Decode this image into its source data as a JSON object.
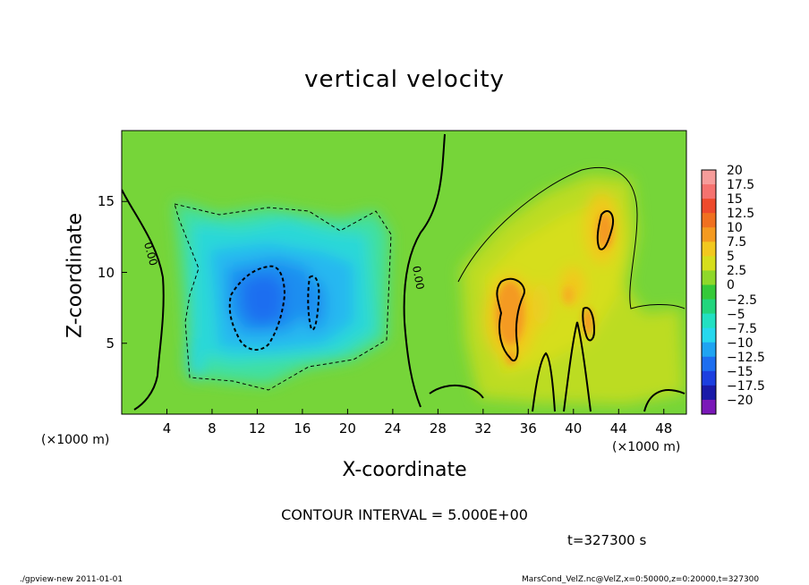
{
  "chart_data": {
    "type": "heatmap",
    "title": "vertical velocity",
    "xlabel": "X-coordinate",
    "ylabel": "Z-coordinate",
    "x_unit_label": "(×1000 m)",
    "xlim": [
      0,
      50
    ],
    "ylim": [
      0,
      20
    ],
    "xticks": [
      4,
      8,
      12,
      16,
      20,
      24,
      28,
      32,
      36,
      40,
      44,
      48
    ],
    "yticks": [
      5,
      10,
      15
    ],
    "colorbar": {
      "levels": [
        20,
        17.5,
        15,
        12.5,
        10,
        7.5,
        5,
        2.5,
        0,
        -2.5,
        -5,
        -7.5,
        -10,
        -12.5,
        -15,
        -17.5,
        -20
      ],
      "labels": [
        "20",
        "17.5",
        "15",
        "12.5",
        "10",
        "7.5",
        "5",
        "2.5",
        "0",
        "−2.5",
        "−5",
        "−7.5",
        "−10",
        "−12.5",
        "−15",
        "−17.5",
        "−20"
      ],
      "colors": [
        "#f69c9a",
        "#f5726f",
        "#ee4a2c",
        "#f07020",
        "#f49a20",
        "#f2c81e",
        "#d6de1c",
        "#8fd82a",
        "#35c939",
        "#22d57d",
        "#22e0c2",
        "#26d8ee",
        "#1fa4f2",
        "#1d6ef0",
        "#1c3fe0",
        "#1a1aa8",
        "#7a18b8"
      ]
    },
    "contour_labels": [
      "0.00",
      "0.00"
    ],
    "contour_interval": "CONTOUR INTERVAL = 5.000E+00",
    "time": "t=327300 s",
    "features": [
      {
        "kind": "updraft",
        "x": 43.5,
        "z": 13,
        "value": 10
      },
      {
        "kind": "updraft",
        "x": 34,
        "z": 7.5,
        "value": 10
      },
      {
        "kind": "updraft",
        "x": 41,
        "z": 6.5,
        "value": 7.5
      },
      {
        "kind": "downdraft",
        "x": 12.5,
        "z": 8,
        "value": -10
      },
      {
        "kind": "downdraft",
        "x": 17.5,
        "z": 8.5,
        "value": -7.5
      }
    ]
  },
  "footer": {
    "left": "./gpview-new   2011-01-01",
    "right": "MarsCond_VelZ.nc@VelZ,x=0:50000,z=0:20000,t=327300"
  }
}
